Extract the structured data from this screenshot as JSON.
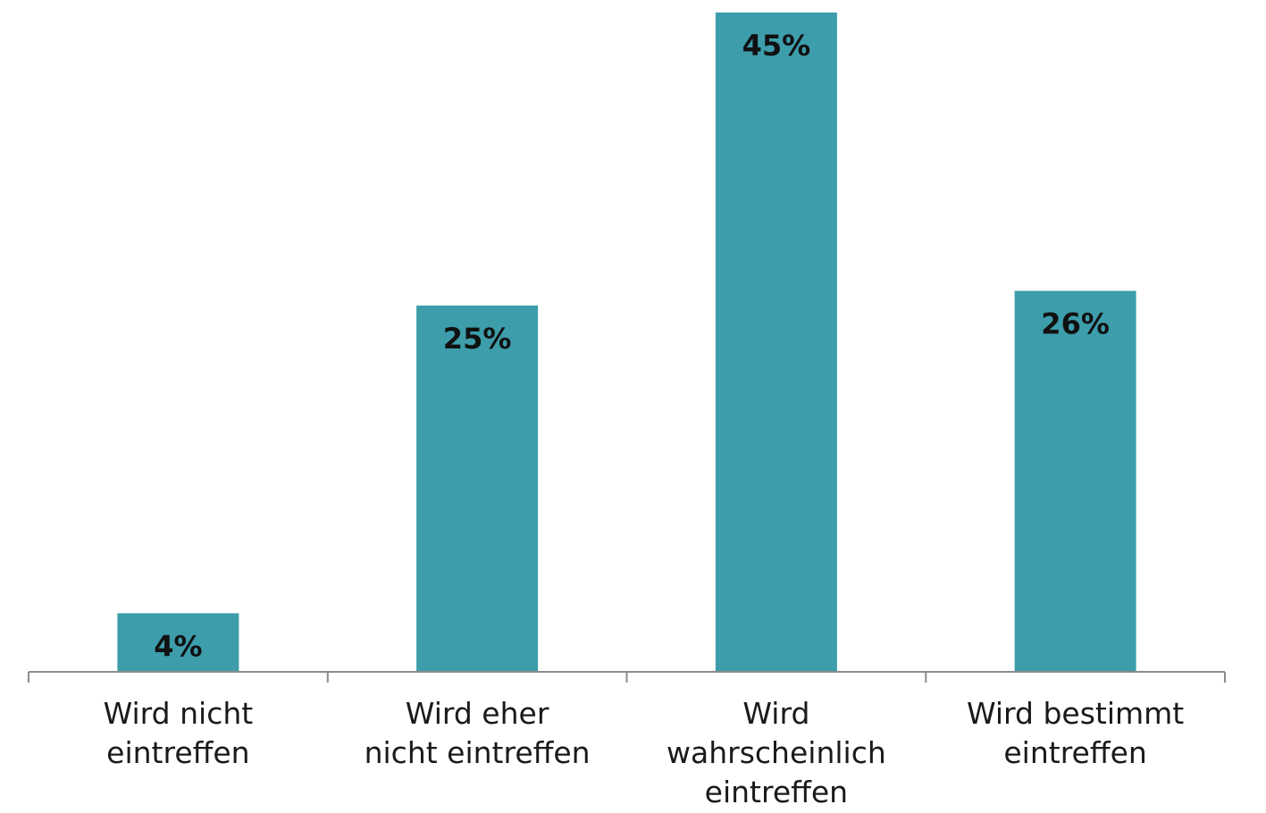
{
  "chart_data": {
    "type": "bar",
    "title": "",
    "xlabel": "",
    "ylabel": "",
    "categories": [
      [
        "Wird nicht",
        "eintreffen"
      ],
      [
        "Wird eher",
        "nicht eintreffen"
      ],
      [
        "Wird",
        "wahrscheinlich",
        "eintreffen"
      ],
      [
        "Wird bestimmt",
        "eintreffen"
      ]
    ],
    "values": [
      4,
      25,
      45,
      26
    ],
    "value_labels": [
      "4%",
      "25%",
      "45%",
      "26%"
    ],
    "value_unit": "%",
    "ylim": [
      0,
      45
    ],
    "grid": false,
    "legend": "none",
    "colors": {
      "bar": "#3d9dab",
      "axis": "#8c8c8c",
      "label_text": "#111111"
    }
  }
}
